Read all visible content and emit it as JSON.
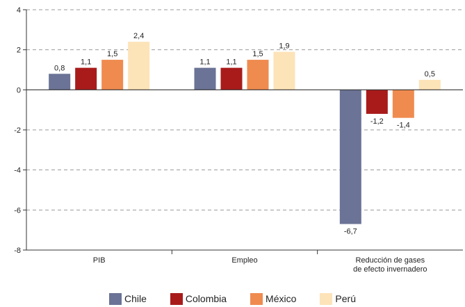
{
  "chart_data": {
    "type": "bar",
    "categories": [
      "PIB",
      "Empleo",
      "Reducción de gases\nde efecto invernadero"
    ],
    "series": [
      {
        "name": "Chile",
        "color": "#6b7396",
        "values": [
          0.8,
          1.1,
          -6.7
        ],
        "labels": [
          "0,8",
          "1,1",
          "-6,7"
        ]
      },
      {
        "name": "Colombia",
        "color": "#a91b1b",
        "values": [
          1.1,
          1.1,
          -1.2
        ],
        "labels": [
          "1,1",
          "1,1",
          "-1,2"
        ]
      },
      {
        "name": "México",
        "color": "#ef8b4f",
        "values": [
          1.5,
          1.5,
          -1.4
        ],
        "labels": [
          "1,5",
          "1,5",
          "-1,4"
        ]
      },
      {
        "name": "Perú",
        "color": "#fde3b8",
        "values": [
          2.4,
          1.9,
          0.5
        ],
        "labels": [
          "2,4",
          "1,9",
          "0,5"
        ]
      }
    ],
    "yticks": [
      4,
      2,
      0,
      -2,
      -4,
      -6,
      -8
    ],
    "ylim": [
      -8,
      4
    ],
    "grid": true,
    "legend_position": "bottom",
    "title": "",
    "xlabel": "",
    "ylabel": ""
  }
}
